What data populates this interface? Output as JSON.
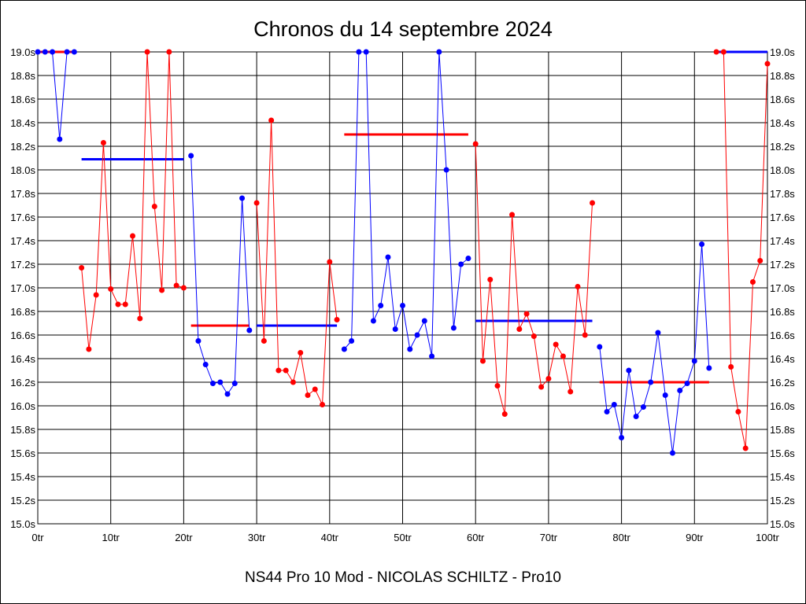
{
  "chart_data": {
    "type": "line",
    "title": "Chronos du 14 septembre 2024",
    "footer": "NS44 Pro 10 Mod - NICOLAS SCHILTZ - Pro10",
    "xlabel": "",
    "ylabel": "",
    "xlim": [
      0,
      100
    ],
    "ylim": [
      15.0,
      19.0
    ],
    "grid": true,
    "x_ticks": [
      0,
      10,
      20,
      30,
      40,
      50,
      60,
      70,
      80,
      90,
      100
    ],
    "x_tick_labels": [
      "0tr",
      "10tr",
      "20tr",
      "30tr",
      "40tr",
      "50tr",
      "60tr",
      "70tr",
      "80tr",
      "90tr",
      "100tr"
    ],
    "y_ticks": [
      15.0,
      15.2,
      15.4,
      15.6,
      15.8,
      16.0,
      16.2,
      16.4,
      16.6,
      16.8,
      17.0,
      17.2,
      17.4,
      17.6,
      17.8,
      18.0,
      18.2,
      18.4,
      18.6,
      18.8,
      19.0
    ],
    "y_tick_labels": [
      "15.0s",
      "15.2s",
      "15.4s",
      "15.6s",
      "15.8s",
      "16.0s",
      "16.2s",
      "16.4s",
      "16.6s",
      "16.8s",
      "17.0s",
      "17.2s",
      "17.4s",
      "17.6s",
      "17.8s",
      "18.0s",
      "18.2s",
      "18.4s",
      "18.6s",
      "18.8s",
      "19.0s"
    ],
    "colors": {
      "red": "#ff0000",
      "blue": "#0000ff"
    },
    "series": [
      {
        "color": "blue",
        "x": [
          0,
          1,
          2,
          3,
          4,
          5
        ],
        "y": [
          19.0,
          19.0,
          19.0,
          18.26,
          19.0,
          19.0
        ]
      },
      {
        "color": "red",
        "x": [
          6,
          7,
          8,
          9,
          10,
          11,
          12,
          13,
          14,
          15,
          16,
          17,
          18,
          19,
          20
        ],
        "y": [
          17.17,
          16.48,
          16.94,
          18.23,
          16.99,
          16.86,
          16.86,
          17.44,
          16.74,
          19.0,
          17.69,
          16.98,
          19.0,
          17.02,
          17.0
        ]
      },
      {
        "color": "blue",
        "x": [
          21,
          22,
          23,
          24,
          25,
          26,
          27,
          28,
          29
        ],
        "y": [
          18.12,
          16.55,
          16.35,
          16.19,
          16.2,
          16.1,
          16.19,
          17.76,
          16.64
        ]
      },
      {
        "color": "red",
        "x": [
          30,
          31,
          32,
          33,
          34,
          35,
          36,
          37,
          38,
          39,
          40,
          41
        ],
        "y": [
          17.72,
          16.55,
          18.42,
          16.3,
          16.3,
          16.2,
          16.45,
          16.09,
          16.14,
          16.01,
          17.22,
          16.73
        ]
      },
      {
        "color": "blue",
        "x": [
          42,
          43,
          44,
          45,
          46,
          47,
          48,
          49,
          50,
          51,
          52,
          53,
          54,
          55,
          56,
          57,
          58,
          59
        ],
        "y": [
          16.48,
          16.55,
          19.0,
          19.0,
          16.72,
          16.85,
          17.26,
          16.65,
          16.85,
          16.48,
          16.6,
          16.72,
          16.42,
          19.0,
          18.0,
          16.66,
          17.2,
          17.25
        ]
      },
      {
        "color": "red",
        "x": [
          60,
          61,
          62,
          63,
          64,
          65,
          66,
          67,
          68,
          69,
          70,
          71,
          72,
          73,
          74,
          75,
          76
        ],
        "y": [
          18.22,
          16.38,
          17.07,
          16.17,
          15.93,
          17.62,
          16.65,
          16.78,
          16.59,
          16.16,
          16.23,
          16.52,
          16.42,
          16.12,
          17.01,
          16.6,
          17.72
        ]
      },
      {
        "color": "blue",
        "x": [
          77,
          78,
          79,
          80,
          81,
          82,
          83,
          84,
          85,
          86,
          87,
          88,
          89,
          90,
          91,
          92
        ],
        "y": [
          16.5,
          15.95,
          16.01,
          15.73,
          16.3,
          15.91,
          15.99,
          16.2,
          16.62,
          16.09,
          15.6,
          16.13,
          16.19,
          16.38,
          17.37,
          16.32
        ]
      },
      {
        "color": "red",
        "x": [
          93,
          94,
          95,
          96,
          97,
          98,
          99,
          100
        ],
        "y": [
          19.0,
          19.0,
          16.33,
          15.95,
          15.64,
          17.05,
          17.23,
          18.9
        ]
      }
    ],
    "reference_lines": [
      {
        "color": "red",
        "x": [
          0,
          5
        ],
        "y": 19.0
      },
      {
        "color": "blue",
        "x": [
          6,
          20
        ],
        "y": 18.09
      },
      {
        "color": "red",
        "x": [
          21,
          29
        ],
        "y": 16.68
      },
      {
        "color": "blue",
        "x": [
          30,
          41
        ],
        "y": 16.68
      },
      {
        "color": "red",
        "x": [
          42,
          59
        ],
        "y": 18.3
      },
      {
        "color": "blue",
        "x": [
          60,
          76
        ],
        "y": 16.72
      },
      {
        "color": "red",
        "x": [
          77,
          92
        ],
        "y": 16.2
      },
      {
        "color": "blue",
        "x": [
          93,
          100
        ],
        "y": 19.0
      }
    ]
  }
}
